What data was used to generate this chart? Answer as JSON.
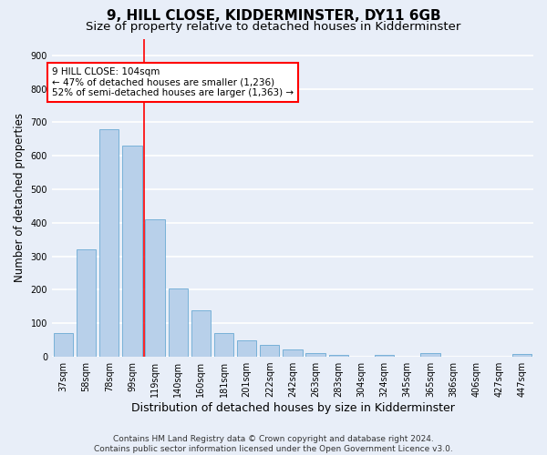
{
  "title": "9, HILL CLOSE, KIDDERMINSTER, DY11 6GB",
  "subtitle": "Size of property relative to detached houses in Kidderminster",
  "xlabel": "Distribution of detached houses by size in Kidderminster",
  "ylabel": "Number of detached properties",
  "footer_line1": "Contains HM Land Registry data © Crown copyright and database right 2024.",
  "footer_line2": "Contains public sector information licensed under the Open Government Licence v3.0.",
  "categories": [
    "37sqm",
    "58sqm",
    "78sqm",
    "99sqm",
    "119sqm",
    "140sqm",
    "160sqm",
    "181sqm",
    "201sqm",
    "222sqm",
    "242sqm",
    "263sqm",
    "283sqm",
    "304sqm",
    "324sqm",
    "345sqm",
    "365sqm",
    "386sqm",
    "406sqm",
    "427sqm",
    "447sqm"
  ],
  "values": [
    70,
    320,
    680,
    630,
    410,
    205,
    138,
    70,
    48,
    36,
    23,
    11,
    7,
    0,
    5,
    0,
    10,
    0,
    0,
    0,
    8
  ],
  "bar_color": "#b8d0ea",
  "bar_edge_color": "#6aaad4",
  "vline_x_index": 3.5,
  "vline_color": "red",
  "annotation_text": "9 HILL CLOSE: 104sqm\n← 47% of detached houses are smaller (1,236)\n52% of semi-detached houses are larger (1,363) →",
  "annotation_box_color": "white",
  "annotation_box_edgecolor": "red",
  "ylim": [
    0,
    950
  ],
  "yticks": [
    0,
    100,
    200,
    300,
    400,
    500,
    600,
    700,
    800,
    900
  ],
  "background_color": "#e8eef8",
  "plot_background_color": "#e8eef8",
  "grid_color": "white",
  "title_fontsize": 11,
  "subtitle_fontsize": 9.5,
  "xlabel_fontsize": 9,
  "ylabel_fontsize": 8.5,
  "tick_fontsize": 7,
  "footer_fontsize": 6.5
}
